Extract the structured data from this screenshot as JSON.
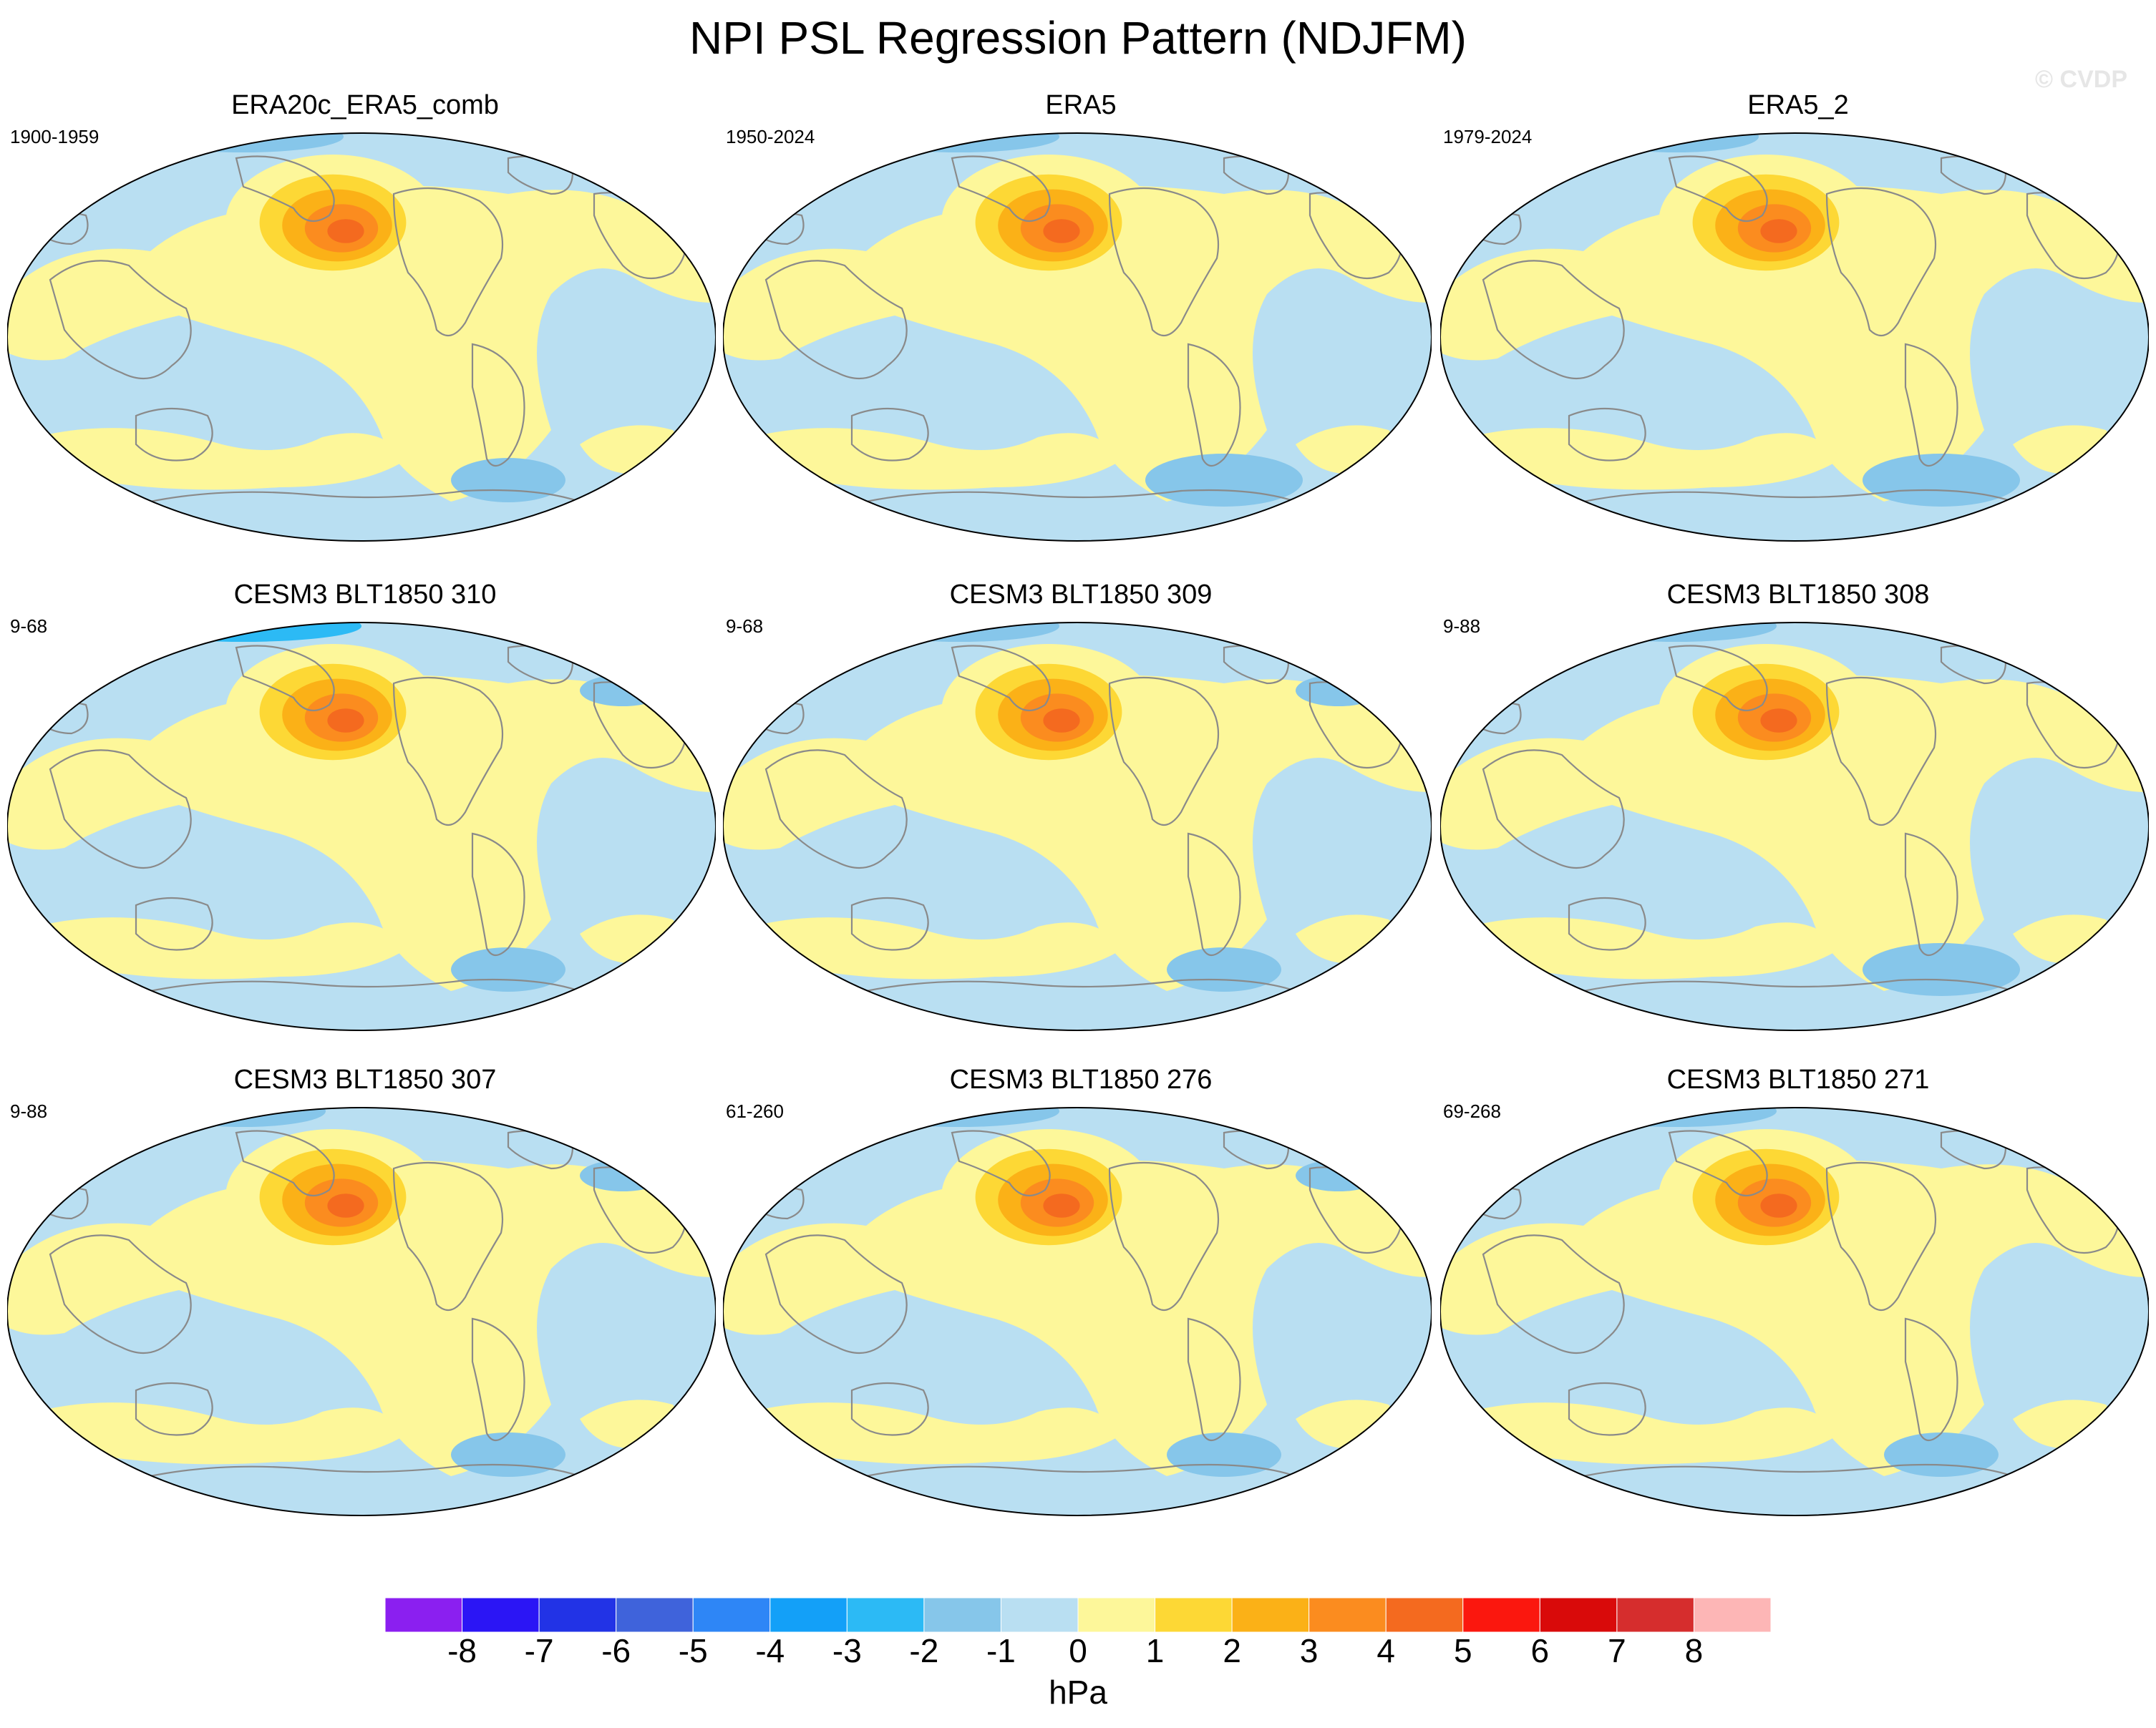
{
  "title": "NPI PSL Regression Pattern (NDJFM)",
  "watermark": "© CVDP",
  "colors": {
    "neg1": "#b9dff2",
    "neg2": "#86c6ea",
    "neg3": "#2cbaf5",
    "pos1": "#fdf79a",
    "pos2": "#fdd835",
    "pos3": "#fbb117",
    "pos4": "#fb8c1f",
    "pos5": "#f46a1f",
    "coast": "#8a8a8a"
  },
  "panels": [
    {
      "title": "ERA20c_ERA5_comb",
      "years": "1900-1959",
      "peak": 4,
      "south_low": 1,
      "arctic_low": 2,
      "atlantic_low": 0
    },
    {
      "title": "ERA5",
      "years": "1950-2024",
      "peak": 5,
      "south_low": 2,
      "arctic_low": 2,
      "atlantic_low": 0
    },
    {
      "title": "ERA5_2",
      "years": "1979-2024",
      "peak": 5,
      "south_low": 2,
      "arctic_low": 1,
      "atlantic_low": 0
    },
    {
      "title": "CESM3 BLT1850 310",
      "years": "9-68",
      "peak": 4,
      "south_low": 1,
      "arctic_low": 3,
      "atlantic_low": 1
    },
    {
      "title": "CESM3 BLT1850 309",
      "years": "9-68",
      "peak": 5,
      "south_low": 1,
      "arctic_low": 2,
      "atlantic_low": 1
    },
    {
      "title": "CESM3 BLT1850 308",
      "years": "9-88",
      "peak": 5,
      "south_low": 2,
      "arctic_low": 2,
      "atlantic_low": 0
    },
    {
      "title": "CESM3 BLT1850 307",
      "years": "9-88",
      "peak": 5,
      "south_low": 1,
      "arctic_low": 1,
      "atlantic_low": 1
    },
    {
      "title": "CESM3 BLT1850 276",
      "years": "61-260",
      "peak": 5,
      "south_low": 1,
      "arctic_low": 2,
      "atlantic_low": 1
    },
    {
      "title": "CESM3 BLT1850 271",
      "years": "69-268",
      "peak": 4,
      "south_low": 1,
      "arctic_low": 2,
      "atlantic_low": 0
    }
  ],
  "colorbar": {
    "units": "hPa",
    "labels": [
      "-8",
      "-7",
      "-6",
      "-5",
      "-4",
      "-3",
      "-2",
      "-1",
      "0",
      "1",
      "2",
      "3",
      "4",
      "5",
      "6",
      "7",
      "8"
    ],
    "colors": [
      "#8b1ff0",
      "#2b15f5",
      "#2233e6",
      "#3f63db",
      "#2e86f6",
      "#13a0f8",
      "#2cbaf5",
      "#86c6ea",
      "#b9dff2",
      "#fdf79a",
      "#fdd835",
      "#fbb117",
      "#fb8c1f",
      "#f46a1f",
      "#fb170e",
      "#d90a0a",
      "#d62d2d",
      "#fdb6b6"
    ]
  }
}
